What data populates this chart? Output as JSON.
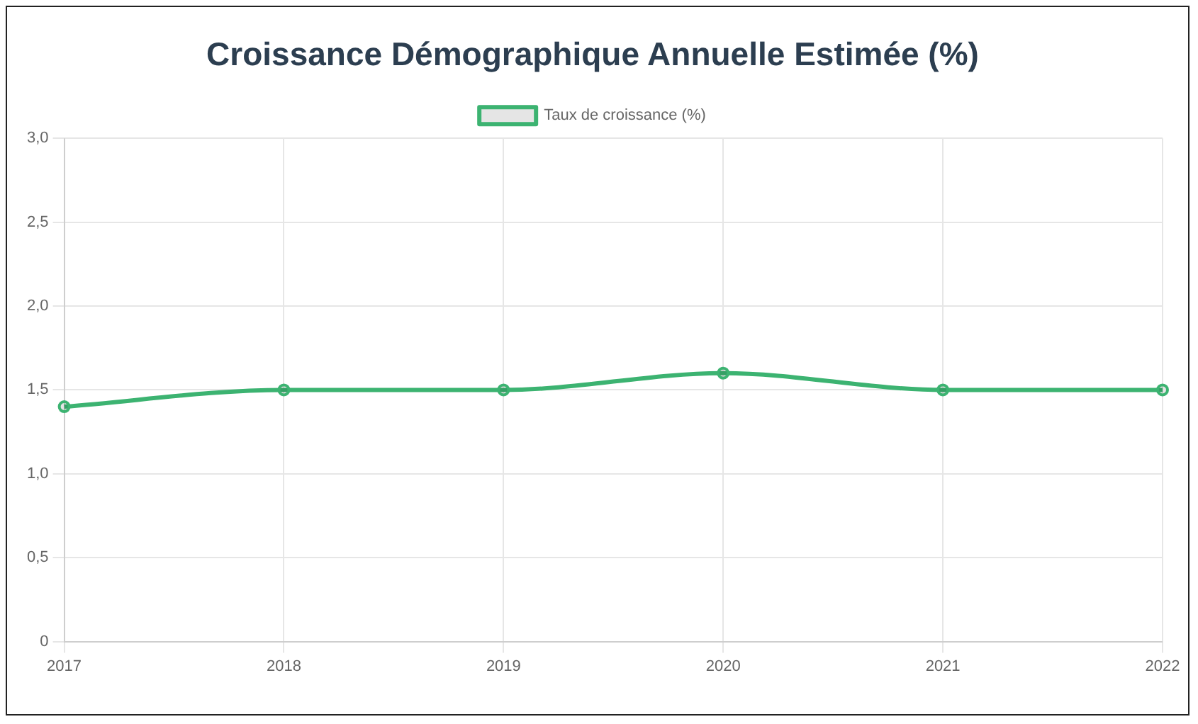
{
  "chart_data": {
    "type": "line",
    "title": "Croissance Démographique Annuelle Estimée (%)",
    "categories": [
      "2017",
      "2018",
      "2019",
      "2020",
      "2021",
      "2022"
    ],
    "series": [
      {
        "name": "Taux de croissance (%)",
        "color": "#3cb371",
        "values": [
          1.4,
          1.5,
          1.5,
          1.6,
          1.5,
          1.5
        ]
      }
    ],
    "ylim": [
      0,
      3
    ],
    "yticks": [
      {
        "value": 0,
        "label": "0"
      },
      {
        "value": 0.5,
        "label": "0,5"
      },
      {
        "value": 1,
        "label": "1,0"
      },
      {
        "value": 1.5,
        "label": "1,5"
      },
      {
        "value": 2,
        "label": "2,0"
      },
      {
        "value": 2.5,
        "label": "2,5"
      },
      {
        "value": 3,
        "label": "3,0"
      }
    ],
    "grid": true,
    "legend": "top",
    "marker": "circle",
    "line_style": "solid"
  }
}
